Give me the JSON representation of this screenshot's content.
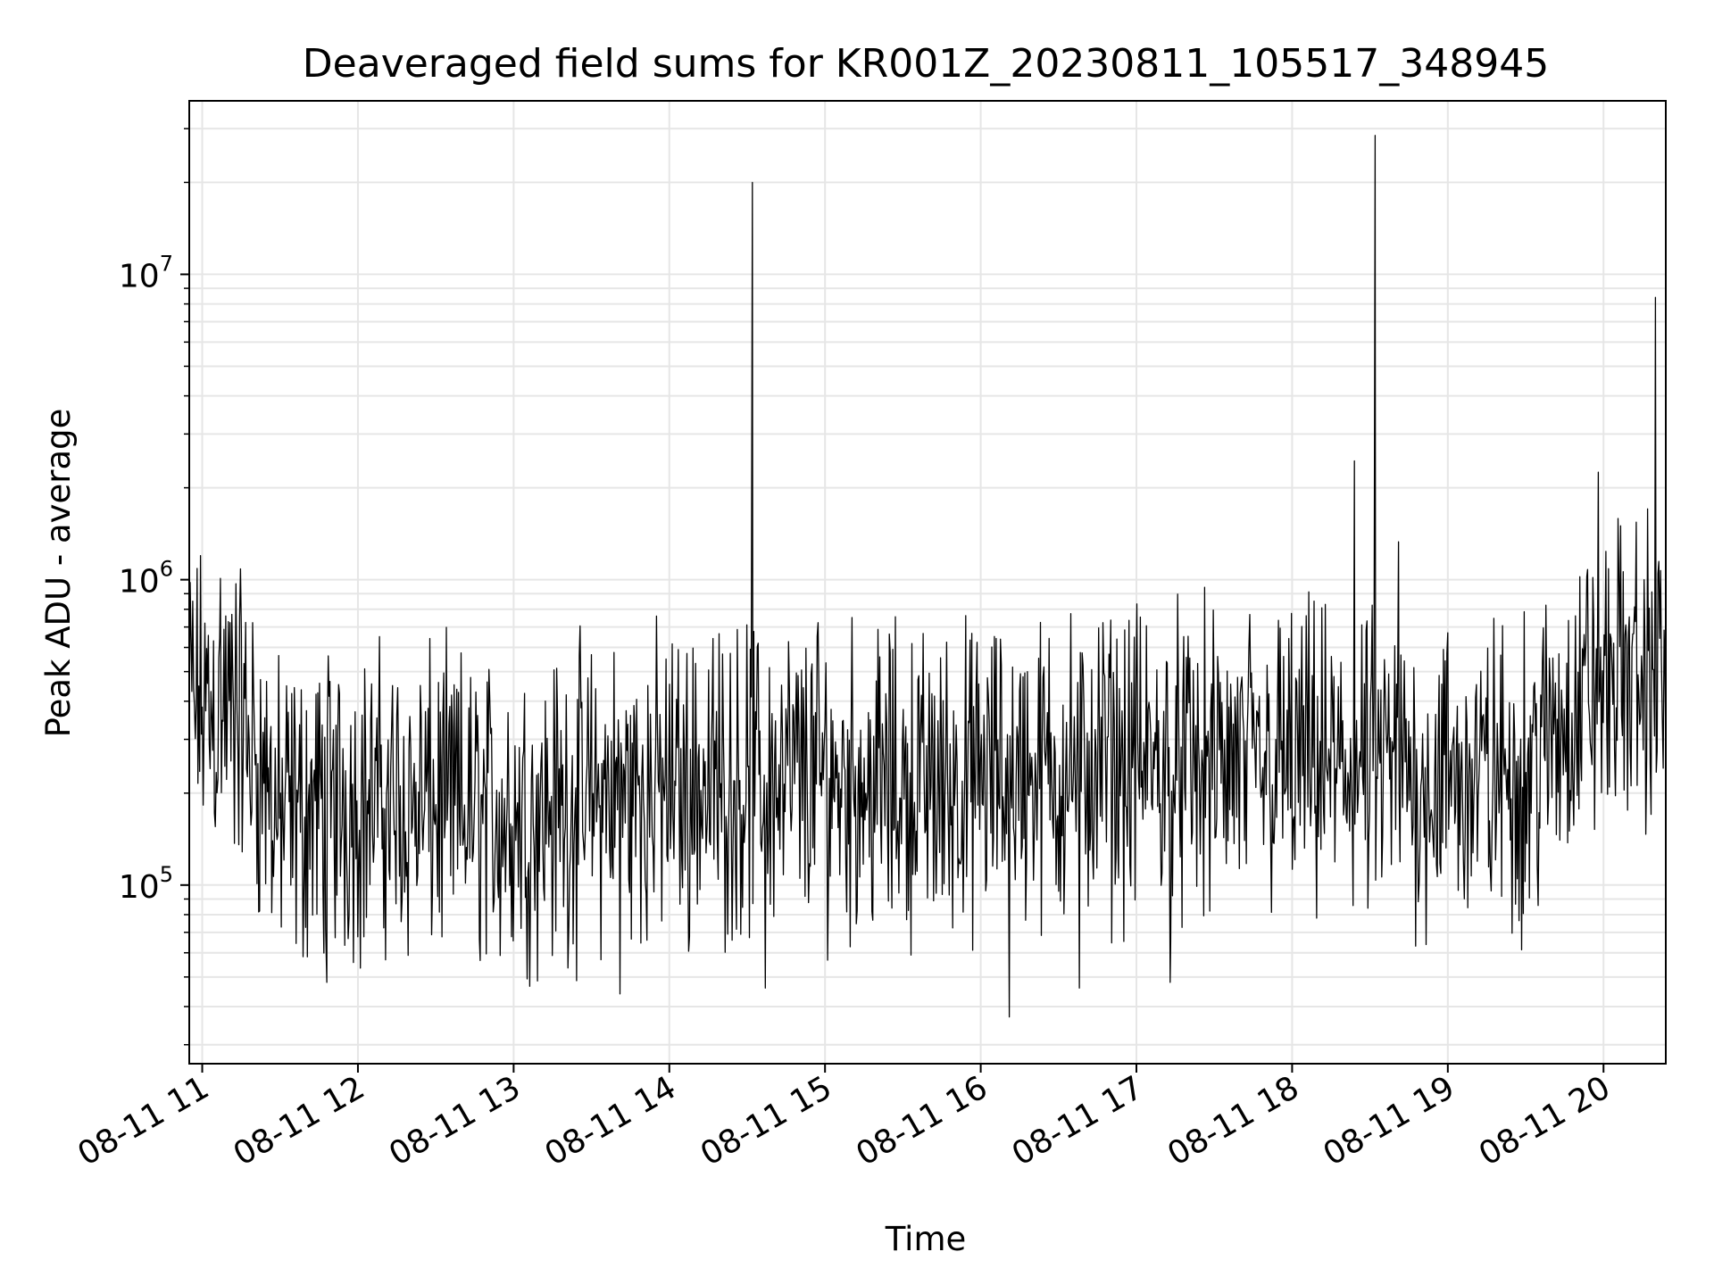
{
  "chart_data": {
    "type": "line",
    "title": "Deaveraged field sums for KR001Z_20230811_105517_348945",
    "xlabel": "Time",
    "ylabel": "Peak ADU - average",
    "yscale": "log",
    "ylim": [
      26000,
      37000000
    ],
    "xlim": [
      "2023-08-11 10:55",
      "2023-08-11 20:24"
    ],
    "grid": true,
    "line_color": "#000000",
    "grid_color": "#e6e6e6",
    "x_ticks": [
      "08-11 11",
      "08-11 12",
      "08-11 13",
      "08-11 14",
      "08-11 15",
      "08-11 16",
      "08-11 17",
      "08-11 18",
      "08-11 19",
      "08-11 20"
    ],
    "y_ticks": [
      {
        "base": "10",
        "exp": "5"
      },
      {
        "base": "10",
        "exp": "6"
      },
      {
        "base": "10",
        "exp": "7"
      }
    ],
    "series": [
      {
        "x": [
          "2023-08-11 10:55",
          "2023-08-11 11:15",
          "2023-08-11 11:30",
          "2023-08-11 11:50",
          "2023-08-11 12:30",
          "2023-08-11 13:00",
          "2023-08-11 13:30",
          "2023-08-11 14:00",
          "2023-08-11 14:30",
          "2023-08-11 15:00",
          "2023-08-11 15:30",
          "2023-08-11 16:00",
          "2023-08-11 16:30",
          "2023-08-11 17:00",
          "2023-08-11 17:30",
          "2023-08-11 18:00",
          "2023-08-11 18:30",
          "2023-08-11 19:00",
          "2023-08-11 19:30",
          "2023-08-11 19:55",
          "2023-08-11 20:10",
          "2023-08-11 20:24"
        ],
        "y": [
          400000,
          350000,
          160000,
          190000,
          180000,
          170000,
          190000,
          210000,
          220000,
          230000,
          210000,
          220000,
          240000,
          250000,
          240000,
          250000,
          230000,
          220000,
          230000,
          450000,
          500000,
          480000
        ]
      }
    ],
    "peaks": [
      {
        "x": "2023-08-11 14:32",
        "y": 20000000
      },
      {
        "x": "2023-08-11 18:24",
        "y": 2450000
      },
      {
        "x": "2023-08-11 18:32",
        "y": 28500000
      },
      {
        "x": "2023-08-11 18:41",
        "y": 1330000
      },
      {
        "x": "2023-08-11 19:58",
        "y": 2250000
      },
      {
        "x": "2023-08-11 20:20",
        "y": 8400000
      },
      {
        "x": "2023-08-11 11:13",
        "y": 970000
      },
      {
        "x": "2023-08-11 11:07",
        "y": 1010000
      }
    ],
    "troughs": [
      {
        "x": "2023-08-11 16:11",
        "y": 37000
      },
      {
        "x": "2023-08-11 13:41",
        "y": 44000
      },
      {
        "x": "2023-08-11 14:37",
        "y": 46000
      },
      {
        "x": "2023-08-11 16:38",
        "y": 46000
      },
      {
        "x": "2023-08-11 17:13",
        "y": 48000
      },
      {
        "x": "2023-08-11 11:48",
        "y": 48000
      }
    ]
  }
}
